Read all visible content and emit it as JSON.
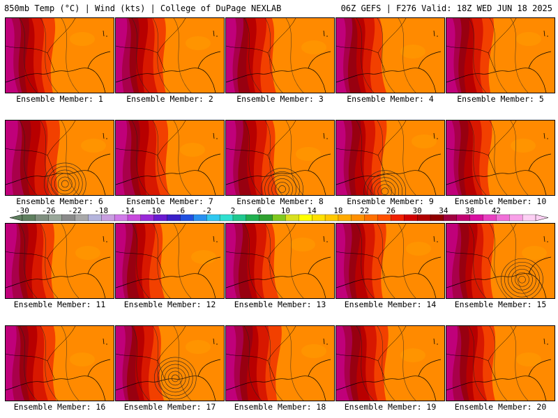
{
  "header": {
    "left": "850mb Temp (°C) | Wind (kts) | College of DuPage NEXLAB",
    "right": "06Z GEFS | F276 Valid: 18Z WED JUN 18 2025"
  },
  "panels": [
    {
      "label": "Ensemble Member: 1",
      "warmth": 0.55,
      "low": null
    },
    {
      "label": "Ensemble Member: 2",
      "warmth": 0.6,
      "low": null
    },
    {
      "label": "Ensemble Member: 3",
      "warmth": 0.55,
      "low": null
    },
    {
      "label": "Ensemble Member: 4",
      "warmth": 0.5,
      "low": null
    },
    {
      "label": "Ensemble Member: 5",
      "warmth": 0.45,
      "low": null
    },
    {
      "label": "Ensemble Member: 6",
      "warmth": 0.75,
      "low": [
        0.55,
        0.85
      ]
    },
    {
      "label": "Ensemble Member: 7",
      "warmth": 0.7,
      "low": null
    },
    {
      "label": "Ensemble Member: 8",
      "warmth": 0.6,
      "low": [
        0.52,
        0.92
      ]
    },
    {
      "label": "Ensemble Member: 9",
      "warmth": 0.55,
      "low": [
        0.45,
        0.95
      ]
    },
    {
      "label": "Ensemble Member: 10",
      "warmth": 0.4,
      "low": null
    },
    {
      "label": "Ensemble Member: 11",
      "warmth": 0.55,
      "low": null
    },
    {
      "label": "Ensemble Member: 12",
      "warmth": 0.5,
      "low": null
    },
    {
      "label": "Ensemble Member: 13",
      "warmth": 0.6,
      "low": null
    },
    {
      "label": "Ensemble Member: 14",
      "warmth": 0.55,
      "low": null
    },
    {
      "label": "Ensemble Member: 15",
      "warmth": 0.5,
      "low": [
        0.7,
        0.75
      ]
    },
    {
      "label": "Ensemble Member: 16",
      "warmth": 0.6,
      "low": null
    },
    {
      "label": "Ensemble Member: 17",
      "warmth": 0.45,
      "low": [
        0.55,
        0.7
      ]
    },
    {
      "label": "Ensemble Member: 18",
      "warmth": 0.75,
      "low": null
    },
    {
      "label": "Ensemble Member: 19",
      "warmth": 0.65,
      "low": null
    },
    {
      "label": "Ensemble Member: 20",
      "warmth": 0.55,
      "low": null
    }
  ],
  "colorbar": {
    "tick_labels": [
      "-30",
      "-26",
      "-22",
      "-18",
      "-14",
      "-10",
      "-6",
      "-2",
      "2",
      "6",
      "10",
      "14",
      "18",
      "22",
      "26",
      "30",
      "34",
      "38",
      "42"
    ],
    "colors": [
      "#5f7f5f",
      "#7f8f7f",
      "#9aa89a",
      "#8a8a8a",
      "#a8a8a8",
      "#b4b4dc",
      "#c89ee0",
      "#d07ae8",
      "#c84adc",
      "#9a2ad8",
      "#6a1ad0",
      "#3a20c8",
      "#2050e0",
      "#2890f0",
      "#30c8f0",
      "#30e0d0",
      "#20c890",
      "#20b050",
      "#30a030",
      "#80c820",
      "#d8e020",
      "#ffff00",
      "#ffe000",
      "#ffc800",
      "#ffaa00",
      "#ff9000",
      "#ff7000",
      "#ff5000",
      "#f02000",
      "#d00000",
      "#b00000",
      "#900000",
      "#a00040",
      "#c00070",
      "#d810a0",
      "#e840c0",
      "#f070d8",
      "#f8a0e8",
      "#fcd0f4"
    ]
  }
}
